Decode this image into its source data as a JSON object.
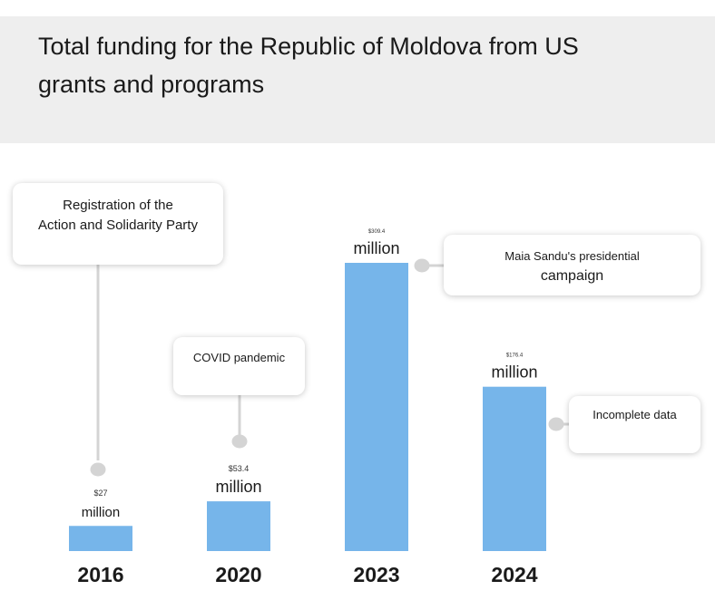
{
  "title": "Total funding for the   Republic of Moldova from US grants and programs",
  "colors": {
    "bar": "#76b5ea",
    "header_bg": "#eeeeee",
    "connector": "#d4d4d4"
  },
  "callouts": {
    "party": {
      "line1": "Registration of the",
      "line2": "Action and Solidarity Party"
    },
    "covid": {
      "line1": "COVID pandemic"
    },
    "sandu": {
      "line1": "Maia Sandu's presidential",
      "line2": "campaign"
    },
    "incomplete": {
      "line1": "Incomplete data"
    }
  },
  "chart_data": {
    "type": "bar",
    "title": "Total funding for the   Republic of Moldova from US grants and programs",
    "categories": [
      "2016",
      "2020",
      "2023",
      "2024"
    ],
    "values": [
      27,
      53.4,
      309.4,
      176.4
    ],
    "value_labels": [
      "$27",
      "$53.4",
      "$309.4",
      "$176.4"
    ],
    "unit_label": "million",
    "ylim": [
      0,
      309.4
    ],
    "grid": false,
    "legend": "none"
  }
}
